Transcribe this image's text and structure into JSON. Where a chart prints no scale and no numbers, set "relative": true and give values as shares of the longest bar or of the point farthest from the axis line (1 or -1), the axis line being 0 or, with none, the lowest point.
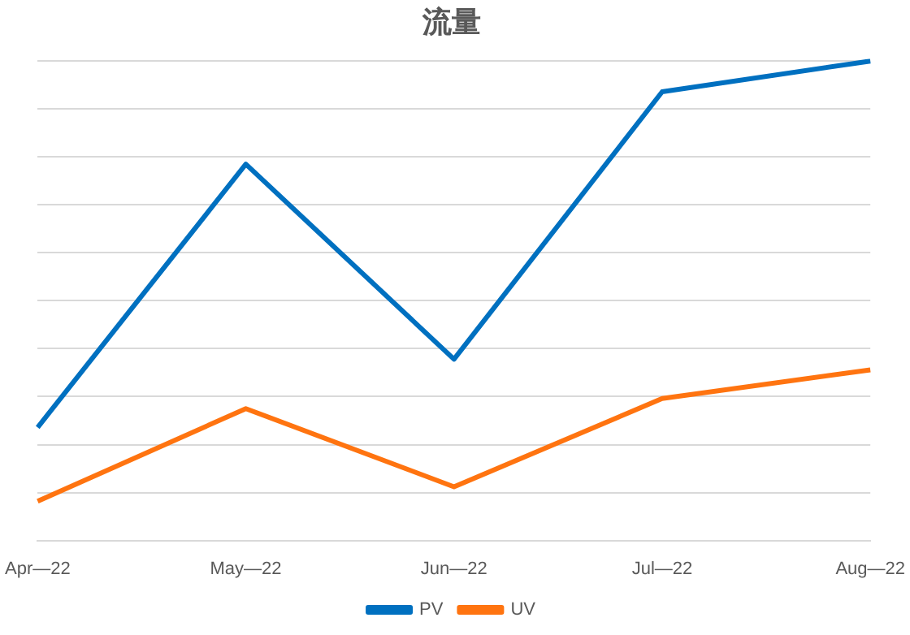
{
  "chart_data": {
    "type": "line",
    "title": "流量",
    "relative": true,
    "grid": "y",
    "legend": "bottom",
    "marker": "none",
    "line_style": "solid",
    "categories": [
      "Apr—22",
      "May—22",
      "Jun—22",
      "Jul—22",
      "Aug—22"
    ],
    "series": [
      {
        "name": "PV",
        "color": "#0070c0",
        "values": [
          0.236,
          0.785,
          0.378,
          0.936,
          1
        ]
      },
      {
        "name": "UV",
        "color": "#ff7410",
        "values": [
          0.082,
          0.275,
          0.112,
          0.296,
          0.356
        ]
      }
    ]
  }
}
